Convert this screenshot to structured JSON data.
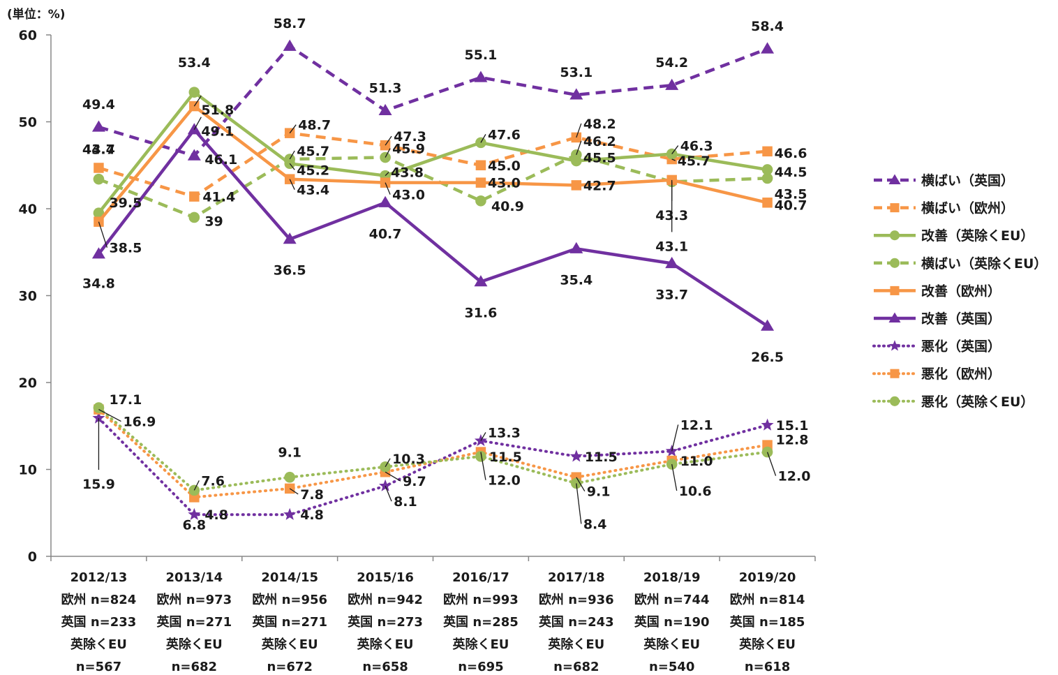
{
  "chart_data": {
    "type": "line",
    "unit_label": "(単位：%)",
    "ylim": [
      0,
      60
    ],
    "yticks": [
      "0",
      "10",
      "20",
      "30",
      "40",
      "50",
      "60"
    ],
    "grid": false,
    "legend_position": "right",
    "categories": [
      [
        "2012/13",
        "欧州 n=824",
        "英国 n=233",
        "英除くEU",
        "n=567"
      ],
      [
        "2013/14",
        "欧州 n=973",
        "英国 n=271",
        "英除くEU",
        "n=682"
      ],
      [
        "2014/15",
        "欧州 n=956",
        "英国 n=271",
        "英除くEU",
        "n=672"
      ],
      [
        "2015/16",
        "欧州 n=942",
        "英国 n=273",
        "英除くEU",
        "n=658"
      ],
      [
        "2016/17",
        "欧州 n=993",
        "英国 n=285",
        "英除くEU",
        "n=695"
      ],
      [
        "2017/18",
        "欧州 n=936",
        "英国 n=243",
        "英除くEU",
        "n=682"
      ],
      [
        "2018/19",
        "欧州 n=744",
        "英国 n=190",
        "英除くEU",
        "n=540"
      ],
      [
        "2019/20",
        "欧州 n=814",
        "英国 n=185",
        "英除くEU",
        "n=618"
      ]
    ],
    "series": [
      {
        "name": "横ばい（英国）",
        "color": "#7030A0",
        "dash": "dashed",
        "marker": "triangle",
        "values": [
          49.4,
          46.1,
          58.7,
          51.3,
          55.1,
          53.1,
          54.2,
          58.4
        ],
        "labels": [
          "49.4",
          "46.1",
          "58.7",
          "51.3",
          "55.1",
          "53.1",
          "54.2",
          "58.4"
        ]
      },
      {
        "name": "横ばい（欧州）",
        "color": "#F79646",
        "dash": "dashed",
        "marker": "square",
        "values": [
          44.7,
          41.4,
          48.7,
          47.3,
          45.0,
          48.2,
          45.7,
          46.6
        ],
        "labels": [
          "44.7",
          "41.4",
          "48.7",
          "47.3",
          "45.0",
          "48.2",
          "45.7",
          "46.6"
        ]
      },
      {
        "name": "改善（英除くEU）",
        "color": "#9BBB59",
        "dash": "solid",
        "marker": "circle",
        "values": [
          39.5,
          53.4,
          45.2,
          43.8,
          47.6,
          45.5,
          46.3,
          44.5
        ],
        "labels": [
          "39.5",
          "53.4",
          "45.2",
          "43.8",
          "47.6",
          "45.5",
          "46.3",
          "44.5"
        ]
      },
      {
        "name": "横ばい（英除くEU）",
        "color": "#9BBB59",
        "dash": "dashed",
        "marker": "circle",
        "values": [
          43.4,
          39,
          45.7,
          45.9,
          40.9,
          46.2,
          43.1,
          43.5
        ],
        "labels": [
          "43.4",
          "39",
          "45.7",
          "45.9",
          "40.9",
          "46.2",
          "43.1",
          "43.5"
        ]
      },
      {
        "name": "改善（欧州）",
        "color": "#F79646",
        "dash": "solid",
        "marker": "square",
        "values": [
          38.5,
          51.8,
          43.4,
          43.0,
          43.0,
          42.7,
          43.3,
          40.7
        ],
        "labels": [
          "38.5",
          "51.8",
          "43.4",
          "43.0",
          "43.0",
          "42.7",
          "43.3",
          "40.7"
        ]
      },
      {
        "name": "改善（英国）",
        "color": "#7030A0",
        "dash": "solid",
        "marker": "triangle",
        "values": [
          34.8,
          49.1,
          36.5,
          40.7,
          31.6,
          35.4,
          33.7,
          26.5
        ],
        "labels": [
          "34.8",
          "49.1",
          "36.5",
          "40.7",
          "31.6",
          "35.4",
          "33.7",
          "26.5"
        ]
      },
      {
        "name": "悪化（英国）",
        "color": "#7030A0",
        "dash": "dotted",
        "marker": "star",
        "values": [
          15.9,
          4.8,
          4.8,
          8.1,
          13.3,
          11.5,
          12.1,
          15.1
        ],
        "labels": [
          "15.9",
          "4.8",
          "4.8",
          "8.1",
          "13.3",
          "11.5",
          "12.1",
          "15.1"
        ]
      },
      {
        "name": "悪化（欧州）",
        "color": "#F79646",
        "dash": "dotted",
        "marker": "square",
        "values": [
          16.9,
          6.8,
          7.8,
          9.7,
          12.0,
          9.1,
          11.0,
          12.8
        ],
        "labels": [
          "16.9",
          "6.8",
          "7.8",
          "9.7",
          "12.0",
          "9.1",
          "11.0",
          "12.8"
        ]
      },
      {
        "name": "悪化（英除くEU）",
        "color": "#9BBB59",
        "dash": "dotted",
        "marker": "circle",
        "values": [
          17.1,
          7.6,
          9.1,
          10.3,
          11.5,
          8.4,
          10.6,
          12.0
        ],
        "labels": [
          "17.1",
          "7.6",
          "9.1",
          "10.3",
          "11.5",
          "8.4",
          "10.6",
          "12.0"
        ]
      }
    ]
  }
}
